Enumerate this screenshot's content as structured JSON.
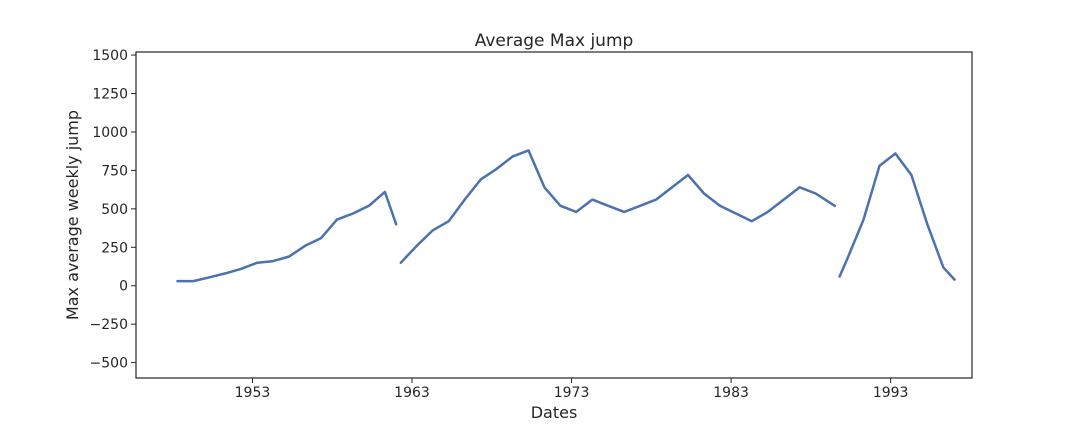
{
  "chart_data": {
    "type": "line",
    "title": "Average Max jump",
    "xlabel": "Dates",
    "ylabel": "Max average weekly jump",
    "xlim": [
      1945.7,
      1998.1
    ],
    "ylim": [
      -600,
      1520
    ],
    "xticks": [
      1953,
      1963,
      1973,
      1983,
      1993
    ],
    "yticks": [
      -500,
      -250,
      0,
      250,
      500,
      750,
      1000,
      1250,
      1500
    ],
    "grid": false,
    "legend": "none",
    "colors": {
      "noisy": "#55a868",
      "smooth": "#4c72b0"
    },
    "series_noisy_segments": [
      [
        [
          1948.3,
          30
        ],
        [
          1949.3,
          30
        ],
        [
          1950.3,
          55
        ],
        [
          1951.3,
          80
        ],
        [
          1952.3,
          110
        ],
        [
          1953.3,
          150
        ],
        [
          1954.3,
          160
        ],
        [
          1955.3,
          190
        ],
        [
          1956.3,
          260
        ],
        [
          1957.3,
          310
        ],
        [
          1958.3,
          430
        ],
        [
          1959.3,
          470
        ],
        [
          1960.3,
          520
        ],
        [
          1961.3,
          610
        ],
        [
          1962.0,
          400
        ]
      ],
      [
        [
          1962.3,
          150
        ],
        [
          1963.3,
          260
        ],
        [
          1964.3,
          360
        ],
        [
          1965.3,
          420
        ],
        [
          1966.3,
          560
        ],
        [
          1967.3,
          690
        ],
        [
          1968.3,
          760
        ],
        [
          1969.3,
          840
        ],
        [
          1970.3,
          880
        ],
        [
          1971.3,
          640
        ],
        [
          1972.3,
          520
        ],
        [
          1973.3,
          480
        ],
        [
          1974.3,
          560
        ],
        [
          1975.3,
          520
        ],
        [
          1976.3,
          480
        ],
        [
          1977.3,
          520
        ],
        [
          1978.3,
          560
        ],
        [
          1979.3,
          640
        ],
        [
          1980.3,
          720
        ],
        [
          1981.3,
          600
        ],
        [
          1982.3,
          520
        ],
        [
          1983.3,
          470
        ],
        [
          1984.3,
          420
        ],
        [
          1985.3,
          480
        ],
        [
          1986.3,
          560
        ],
        [
          1987.3,
          640
        ],
        [
          1988.3,
          600
        ],
        [
          1989.5,
          520
        ]
      ],
      [
        [
          1989.8,
          60
        ],
        [
          1990.3,
          180
        ],
        [
          1991.3,
          430
        ],
        [
          1992.3,
          780
        ],
        [
          1993.3,
          860
        ],
        [
          1994.3,
          720
        ],
        [
          1995.3,
          400
        ],
        [
          1996.3,
          120
        ],
        [
          1997.0,
          40
        ]
      ]
    ],
    "series_smooth_segments": [
      [
        [
          1948.3,
          30
        ],
        [
          1949.3,
          30
        ],
        [
          1950.3,
          55
        ],
        [
          1951.3,
          80
        ],
        [
          1952.3,
          110
        ],
        [
          1953.3,
          150
        ],
        [
          1954.3,
          160
        ],
        [
          1955.3,
          190
        ],
        [
          1956.3,
          260
        ],
        [
          1957.3,
          310
        ],
        [
          1958.3,
          430
        ],
        [
          1959.3,
          470
        ],
        [
          1960.3,
          520
        ],
        [
          1961.3,
          610
        ],
        [
          1962.0,
          400
        ]
      ],
      [
        [
          1962.3,
          150
        ],
        [
          1963.3,
          260
        ],
        [
          1964.3,
          360
        ],
        [
          1965.3,
          420
        ],
        [
          1966.3,
          560
        ],
        [
          1967.3,
          690
        ],
        [
          1968.3,
          760
        ],
        [
          1969.3,
          840
        ],
        [
          1970.3,
          880
        ],
        [
          1971.3,
          640
        ],
        [
          1972.3,
          520
        ],
        [
          1973.3,
          480
        ],
        [
          1974.3,
          560
        ],
        [
          1975.3,
          520
        ],
        [
          1976.3,
          480
        ],
        [
          1977.3,
          520
        ],
        [
          1978.3,
          560
        ],
        [
          1979.3,
          640
        ],
        [
          1980.3,
          720
        ],
        [
          1981.3,
          600
        ],
        [
          1982.3,
          520
        ],
        [
          1983.3,
          470
        ],
        [
          1984.3,
          420
        ],
        [
          1985.3,
          480
        ],
        [
          1986.3,
          560
        ],
        [
          1987.3,
          640
        ],
        [
          1988.3,
          600
        ],
        [
          1989.5,
          520
        ]
      ],
      [
        [
          1989.8,
          60
        ],
        [
          1990.3,
          180
        ],
        [
          1991.3,
          430
        ],
        [
          1992.3,
          780
        ],
        [
          1993.3,
          860
        ],
        [
          1994.3,
          720
        ],
        [
          1995.3,
          400
        ],
        [
          1996.3,
          120
        ],
        [
          1997.0,
          40
        ]
      ]
    ]
  }
}
